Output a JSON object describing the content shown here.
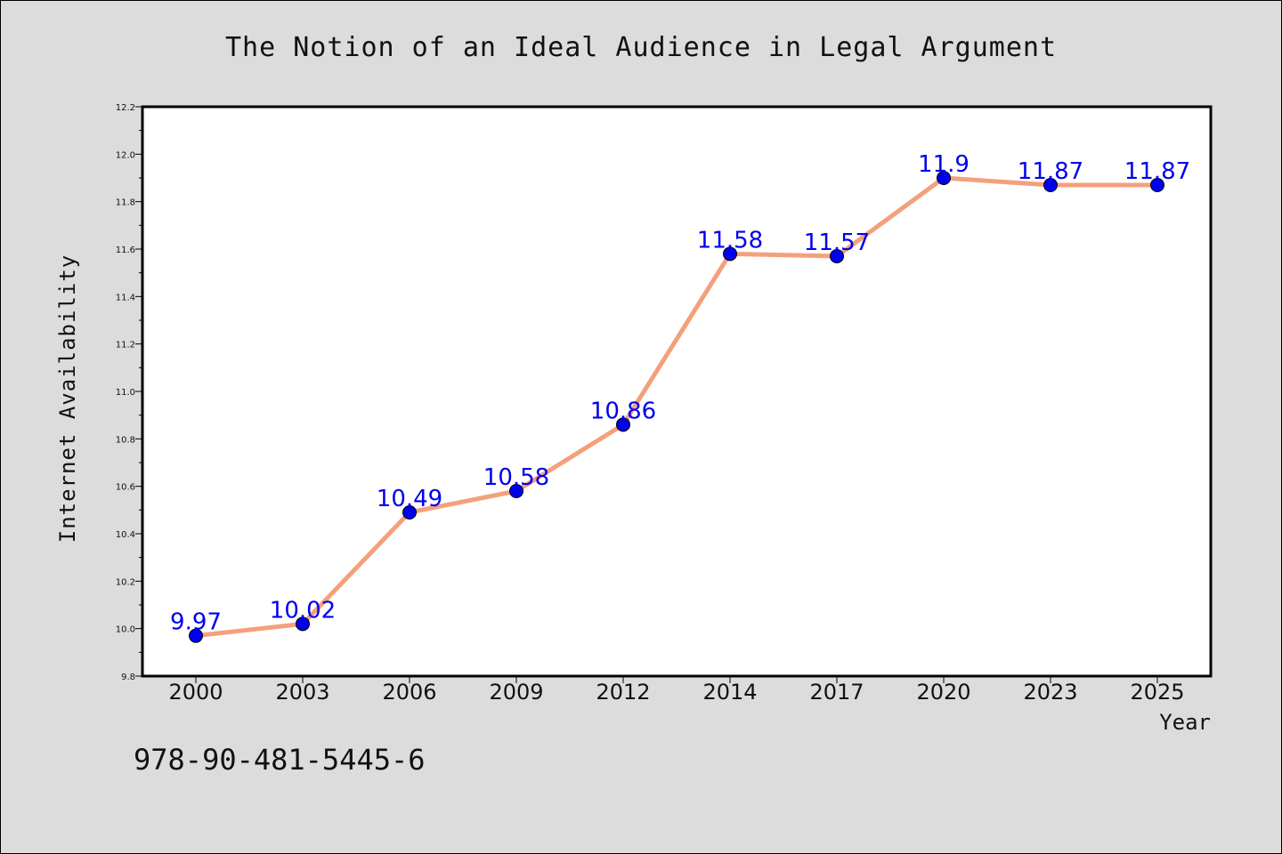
{
  "colors": {
    "background": "#dcdcdc",
    "plot_background": "#ffffff",
    "line": "#f4a07d",
    "marker": "#0000ee",
    "data_label": "#0000ee"
  },
  "footer": {
    "isbn": "978-90-481-5445-6"
  },
  "chart_data": {
    "type": "line",
    "title": "The Notion of an Ideal Audience in Legal Argument",
    "xlabel": "Year",
    "ylabel": "Internet Availability",
    "categories": [
      "2000",
      "2003",
      "2006",
      "2009",
      "2012",
      "2014",
      "2017",
      "2020",
      "2023",
      "2025"
    ],
    "series": [
      {
        "values": [
          9.97,
          10.02,
          10.49,
          10.58,
          10.86,
          11.58,
          11.57,
          11.9,
          11.87,
          11.87
        ],
        "data_labels": [
          "9.97",
          "10.02",
          "10.49",
          "10.58",
          "10.86",
          "11.58",
          "11.57",
          "11.9",
          "11.87",
          "11.87"
        ]
      }
    ],
    "ylim": [
      9.8,
      12.2
    ],
    "yticks": [
      "9.8",
      "10.0",
      "10.2",
      "10.4",
      "10.6",
      "10.8",
      "11.0",
      "11.2",
      "11.4",
      "11.6",
      "11.8",
      "12.0",
      "12.2"
    ],
    "grid": false,
    "legend": "none"
  }
}
